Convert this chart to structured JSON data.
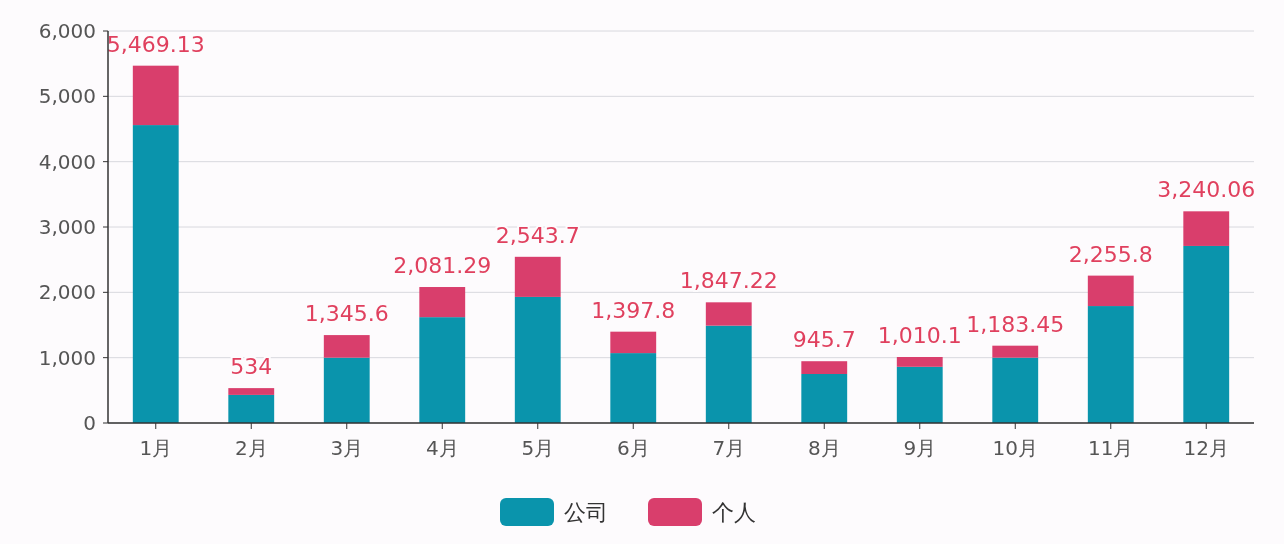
{
  "chart_data": {
    "type": "bar",
    "stacked": true,
    "categories": [
      "1月",
      "2月",
      "3月",
      "4月",
      "5月",
      "6月",
      "7月",
      "8月",
      "9月",
      "10月",
      "11月",
      "12月"
    ],
    "series": [
      {
        "name": "公司",
        "color": "#0a94ac",
        "values": [
          4560,
          430,
          1000,
          1620,
          1930,
          1070,
          1490,
          750,
          860,
          1000,
          1790,
          2710
        ]
      },
      {
        "name": "个人",
        "color": "#d93e6c",
        "values": [
          909.13,
          104,
          345.6,
          461.29,
          613.7,
          327.8,
          357.22,
          195.7,
          150.1,
          183.45,
          465.8,
          530.06
        ]
      }
    ],
    "totals": [
      "5,469.13",
      "534",
      "1,345.6",
      "2,081.29",
      "2,543.7",
      "1,397.8",
      "1,847.22",
      "945.7",
      "1,010.1",
      "1,183.45",
      "2,255.8",
      "3,240.06"
    ],
    "ylim": [
      0,
      6000
    ],
    "yticks": [
      {
        "value": 0,
        "label": "0"
      },
      {
        "value": 1000,
        "label": "1,000"
      },
      {
        "value": 2000,
        "label": "2,000"
      },
      {
        "value": 3000,
        "label": "3,000"
      },
      {
        "value": 4000,
        "label": "4,000"
      },
      {
        "value": 5000,
        "label": "5,000"
      },
      {
        "value": 6000,
        "label": "6,000"
      }
    ],
    "grid": "y",
    "legend": "bottom"
  }
}
